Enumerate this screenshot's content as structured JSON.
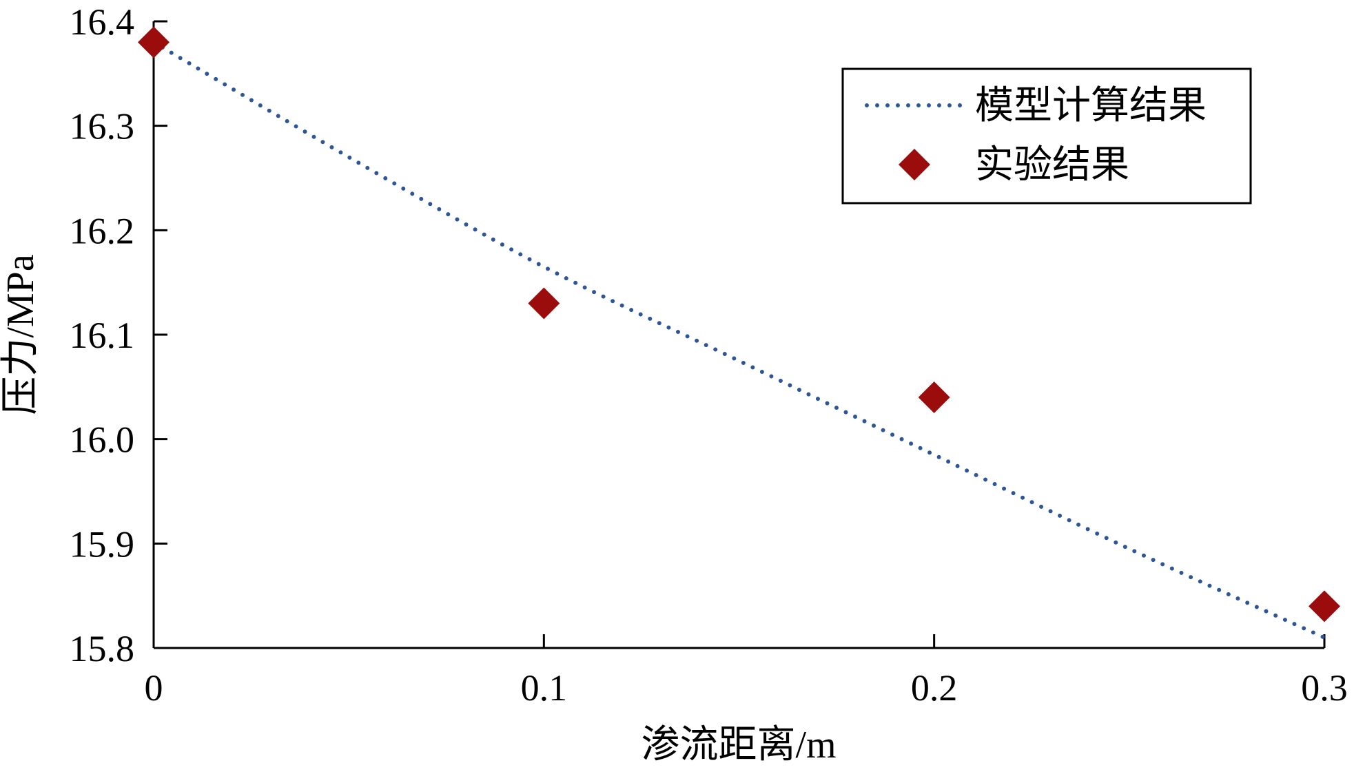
{
  "chart_data": {
    "type": "scatter",
    "title": "",
    "xlabel": "渗流距离/m",
    "ylabel": "压力/MPa",
    "xlim": [
      0,
      0.3
    ],
    "ylim": [
      15.8,
      16.4
    ],
    "x_ticks": [
      "0",
      "0.1",
      "0.2",
      "0.3"
    ],
    "y_ticks": [
      "15.8",
      "15.9",
      "16.0",
      "16.1",
      "16.2",
      "16.3",
      "16.4"
    ],
    "grid": false,
    "legend_position": "top-right",
    "series": [
      {
        "name": "模型计算结果",
        "style": "dotted-line",
        "color": "#2e5597",
        "x": [
          0,
          0.05,
          0.1,
          0.15,
          0.2,
          0.25,
          0.3
        ],
        "y": [
          16.38,
          16.27,
          16.165,
          16.075,
          15.985,
          15.895,
          15.81
        ]
      },
      {
        "name": "实验结果",
        "style": "diamond-markers",
        "color": "#9b0d0d",
        "x": [
          0,
          0.1,
          0.2,
          0.3
        ],
        "y": [
          16.38,
          16.13,
          16.04,
          15.84
        ]
      }
    ]
  }
}
